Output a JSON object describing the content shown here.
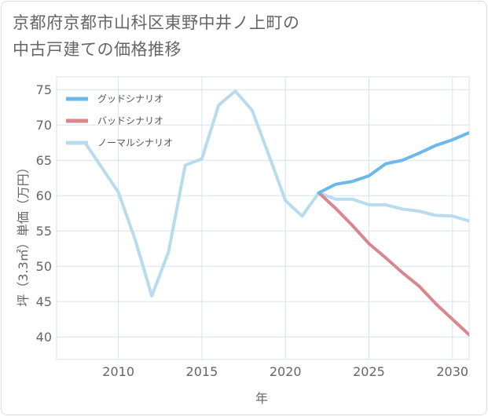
{
  "title": {
    "line1": "京都府京都市山科区東野中井ノ上町の",
    "line2": "中古戸建ての価格推移"
  },
  "colors": {
    "good": "#6cb8ea",
    "bad": "#d9868f",
    "normal": "#b9dcec",
    "grid": "#d6e4ef",
    "text": "#666666"
  },
  "chart_data": {
    "type": "line",
    "xlabel": "年",
    "ylabel": "坪（3.3㎡）単価（万円）",
    "xlim": [
      2006.3,
      2031
    ],
    "ylim": [
      36.8,
      76.8
    ],
    "xticks": [
      2010,
      2015,
      2020,
      2025,
      2030
    ],
    "yticks": [
      40,
      45,
      50,
      55,
      60,
      65,
      70,
      75
    ],
    "legend_position": "top-left",
    "series": [
      {
        "name": "グッドシナリオ",
        "color_key": "good",
        "x": [
          2022,
          2023,
          2024,
          2025,
          2026,
          2027,
          2028,
          2029,
          2030,
          2031
        ],
        "y": [
          60.4,
          61.6,
          62.0,
          62.8,
          64.5,
          65.0,
          66.0,
          67.1,
          67.9,
          68.9
        ]
      },
      {
        "name": "バッドシナリオ",
        "color_key": "bad",
        "x": [
          2022,
          2023,
          2024,
          2025,
          2026,
          2027,
          2028,
          2029,
          2030,
          2031
        ],
        "y": [
          60.4,
          58.2,
          55.8,
          53.2,
          51.2,
          49.1,
          47.2,
          44.7,
          42.5,
          40.3
        ]
      },
      {
        "name": "ノーマルシナリオ",
        "color_key": "normal",
        "x": [
          2008,
          2009,
          2010,
          2011,
          2012,
          2013,
          2014,
          2015,
          2016,
          2017,
          2018,
          2019,
          2020,
          2021,
          2022,
          2023,
          2024,
          2025,
          2026,
          2027,
          2028,
          2029,
          2030,
          2031
        ],
        "y": [
          67.5,
          64.0,
          60.5,
          53.8,
          45.8,
          52.0,
          64.3,
          65.2,
          72.8,
          74.8,
          72.1,
          65.8,
          59.3,
          57.1,
          60.4,
          59.5,
          59.5,
          58.7,
          58.7,
          58.1,
          57.8,
          57.2,
          57.1,
          56.4
        ]
      }
    ]
  }
}
